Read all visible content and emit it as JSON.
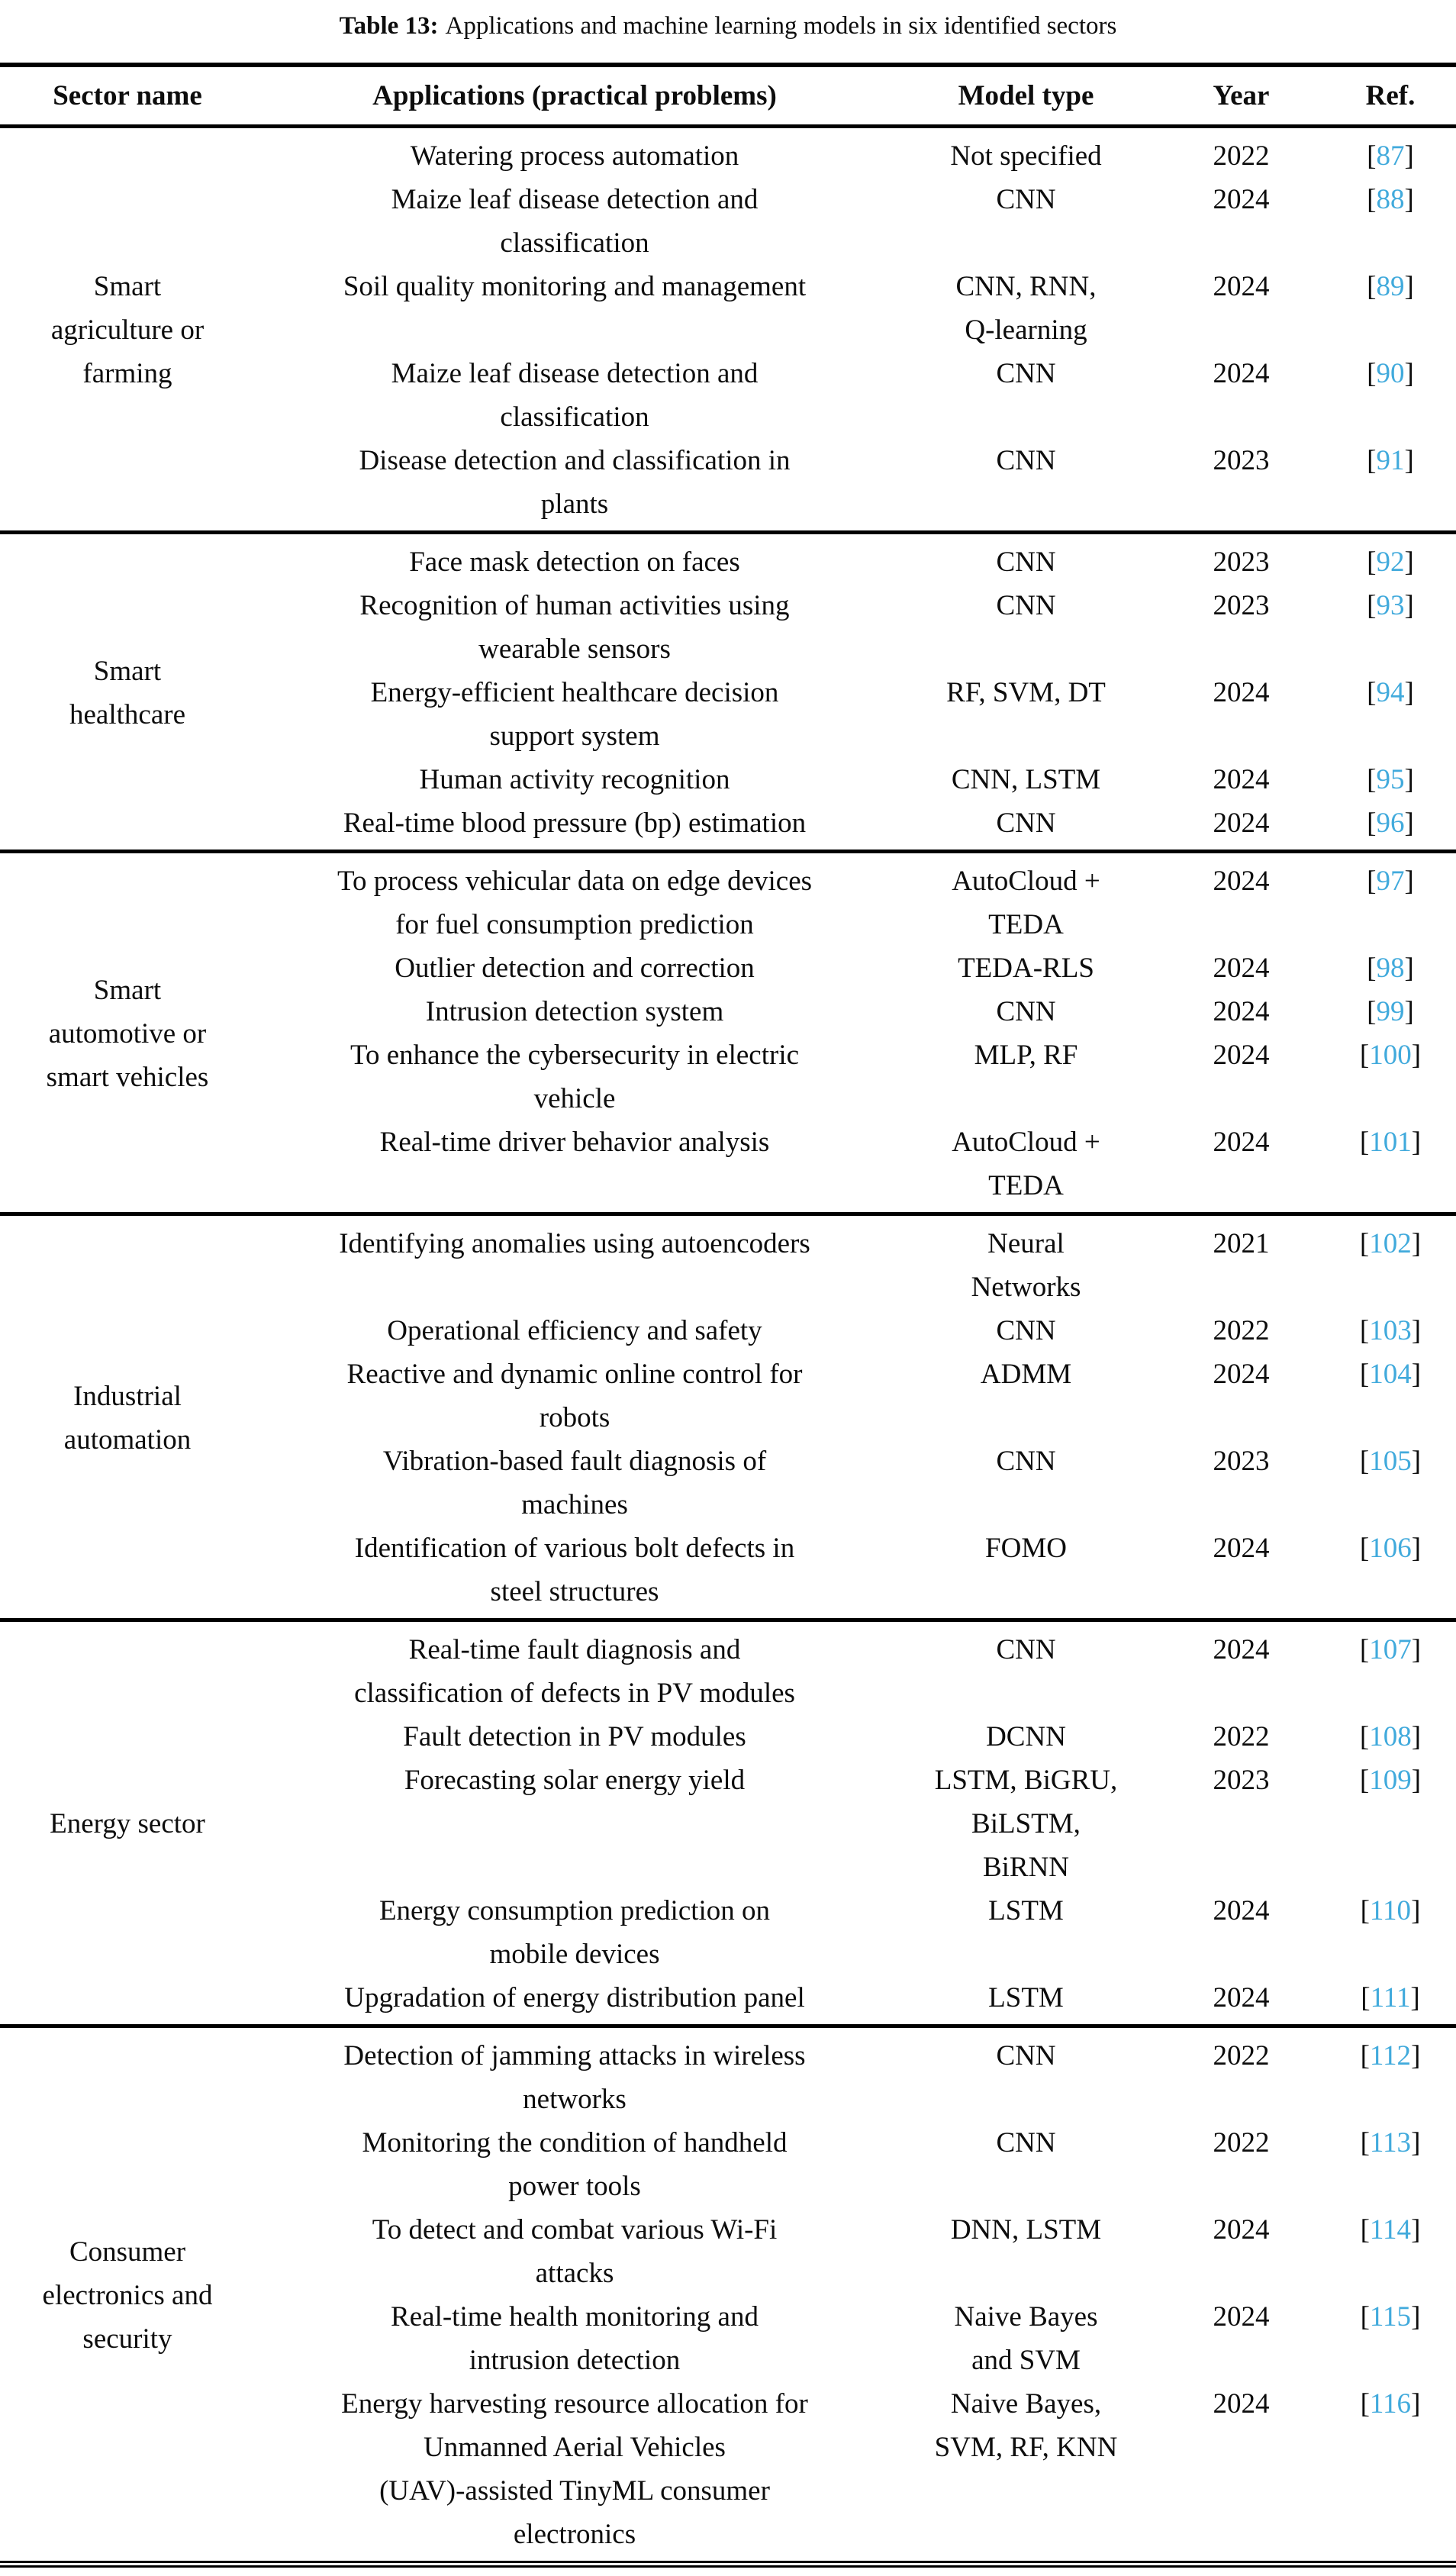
{
  "title": {
    "label": "Table 13:",
    "text": "Applications and machine learning models in six identified sectors"
  },
  "columns": [
    "Sector name",
    "Applications (practical problems)",
    "Model type",
    "Year",
    "Ref."
  ],
  "ref_format": {
    "open": "[",
    "close": "]"
  },
  "colors": {
    "ref_link": "#41aadc",
    "text": "#0d0d0d"
  },
  "sections": [
    {
      "sector": "Smart\nagriculture or\nfarming",
      "rows": [
        {
          "application": "Watering process automation",
          "model": "Not specified",
          "year": "2022",
          "ref": "87"
        },
        {
          "application": "Maize leaf disease detection and\nclassification",
          "model": "CNN",
          "year": "2024",
          "ref": "88"
        },
        {
          "application": "Soil quality monitoring and management",
          "model": "CNN, RNN,\nQ-learning",
          "year": "2024",
          "ref": "89"
        },
        {
          "application": "Maize leaf disease detection and\nclassification",
          "model": "CNN",
          "year": "2024",
          "ref": "90"
        },
        {
          "application": "Disease detection and classification in\nplants",
          "model": "CNN",
          "year": "2023",
          "ref": "91"
        }
      ]
    },
    {
      "sector": "Smart\nhealthcare",
      "rows": [
        {
          "application": "Face mask detection on faces",
          "model": "CNN",
          "year": "2023",
          "ref": "92"
        },
        {
          "application": "Recognition of human activities using\nwearable sensors",
          "model": "CNN",
          "year": "2023",
          "ref": "93"
        },
        {
          "application": "Energy-efficient healthcare decision\nsupport system",
          "model": "RF, SVM, DT",
          "year": "2024",
          "ref": "94"
        },
        {
          "application": "Human activity recognition",
          "model": "CNN, LSTM",
          "year": "2024",
          "ref": "95"
        },
        {
          "application": "Real-time blood pressure (bp) estimation",
          "model": "CNN",
          "year": "2024",
          "ref": "96"
        }
      ]
    },
    {
      "sector": "Smart\nautomotive or\nsmart vehicles",
      "rows": [
        {
          "application": "To process vehicular data on edge devices\nfor fuel consumption prediction",
          "model": "AutoCloud +\nTEDA",
          "year": "2024",
          "ref": "97"
        },
        {
          "application": "Outlier detection and correction",
          "model": "TEDA-RLS",
          "year": "2024",
          "ref": "98"
        },
        {
          "application": "Intrusion detection system",
          "model": "CNN",
          "year": "2024",
          "ref": "99"
        },
        {
          "application": "To enhance the cybersecurity in electric\nvehicle",
          "model": "MLP, RF",
          "year": "2024",
          "ref": "100"
        },
        {
          "application": "Real-time driver behavior analysis",
          "model": "AutoCloud +\nTEDA",
          "year": "2024",
          "ref": "101"
        }
      ]
    },
    {
      "sector": "Industrial\nautomation",
      "rows": [
        {
          "application": "Identifying anomalies using autoencoders",
          "model": "Neural\nNetworks",
          "year": "2021",
          "ref": "102"
        },
        {
          "application": "Operational efficiency and safety",
          "model": "CNN",
          "year": "2022",
          "ref": "103"
        },
        {
          "application": "Reactive and dynamic online control for\nrobots",
          "model": "ADMM",
          "year": "2024",
          "ref": "104"
        },
        {
          "application": "Vibration-based fault diagnosis of\nmachines",
          "model": "CNN",
          "year": "2023",
          "ref": "105"
        },
        {
          "application": "Identification of various bolt defects in\nsteel structures",
          "model": "FOMO",
          "year": "2024",
          "ref": "106"
        }
      ]
    },
    {
      "sector": "Energy sector",
      "rows": [
        {
          "application": "Real-time fault diagnosis and\nclassification of defects in PV modules",
          "model": "CNN",
          "year": "2024",
          "ref": "107"
        },
        {
          "application": "Fault detection in PV modules",
          "model": "DCNN",
          "year": "2022",
          "ref": "108"
        },
        {
          "application": "Forecasting solar energy yield",
          "model": "LSTM, BiGRU,\nBiLSTM,\nBiRNN",
          "year": "2023",
          "ref": "109"
        },
        {
          "application": "Energy consumption prediction on\nmobile devices",
          "model": "LSTM",
          "year": "2024",
          "ref": "110"
        },
        {
          "application": "Upgradation of energy distribution panel",
          "model": "LSTM",
          "year": "2024",
          "ref": "111"
        }
      ]
    },
    {
      "sector": "Consumer\nelectronics and\nsecurity",
      "rows": [
        {
          "application": "Detection of jamming attacks in wireless\nnetworks",
          "model": "CNN",
          "year": "2022",
          "ref": "112"
        },
        {
          "application": "Monitoring the condition of handheld\npower tools",
          "model": "CNN",
          "year": "2022",
          "ref": "113"
        },
        {
          "application": "To detect and combat various Wi-Fi\nattacks",
          "model": "DNN, LSTM",
          "year": "2024",
          "ref": "114"
        },
        {
          "application": "Real-time health monitoring and\nintrusion detection",
          "model": "Naive Bayes\nand SVM",
          "year": "2024",
          "ref": "115"
        },
        {
          "application": "Energy harvesting resource allocation for\nUnmanned Aerial Vehicles\n(UAV)-assisted TinyML consumer\nelectronics",
          "model": "Naive Bayes,\nSVM, RF, KNN",
          "year": "2024",
          "ref": "116"
        }
      ]
    }
  ]
}
